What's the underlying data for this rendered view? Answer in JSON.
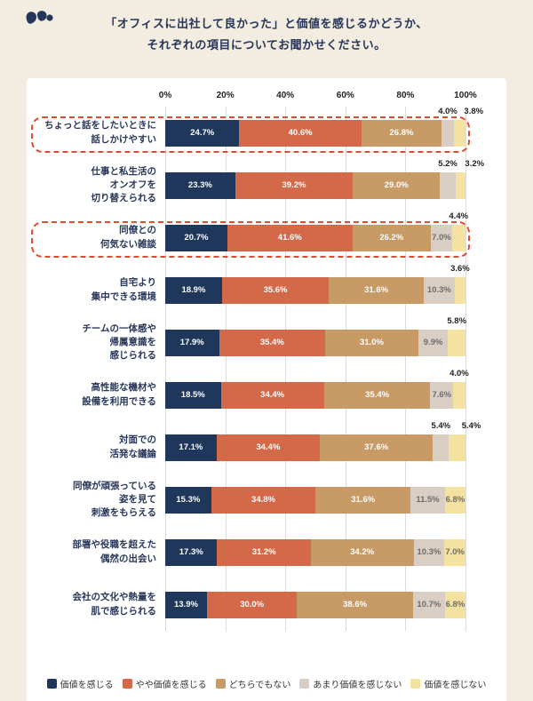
{
  "header": {
    "title_line1": "「オフィスに出社して良かった」と価値を感じるかどうか、",
    "title_line2": "それぞれの項目についてお聞かせください。"
  },
  "colors": {
    "page_bg": "#f2ece1",
    "card_bg": "#ffffff",
    "title_text": "#26365a",
    "grid": "#dcdcdc",
    "highlight_dash": "#e14b2e"
  },
  "chart_data": {
    "type": "bar",
    "variant": "horizontal-stacked",
    "grid": true,
    "legend_position": "bottom",
    "x_range": [
      0,
      100
    ],
    "x_ticks": [
      "0%",
      "20%",
      "40%",
      "60%",
      "80%",
      "100%"
    ],
    "value_suffix": "%",
    "series": [
      {
        "name": "価値を感じる",
        "color": "#20375c"
      },
      {
        "name": "やや価値を感じる",
        "color": "#d4694a"
      },
      {
        "name": "どちらでもない",
        "color": "#c79a66"
      },
      {
        "name": "あまり価値を感じない",
        "color": "#d8cec4"
      },
      {
        "name": "価値を感じない",
        "color": "#f4e2a0"
      }
    ],
    "rows": [
      {
        "label": "ちょっと話をしたいときに\n話しかけやすい",
        "values": [
          24.7,
          40.6,
          26.8,
          4.0,
          3.8
        ],
        "outside_labels": [
          3,
          4
        ],
        "highlighted": true
      },
      {
        "label": "仕事と私生活の\nオンオフを\n切り替えられる",
        "values": [
          23.3,
          39.2,
          29.0,
          5.2,
          3.2
        ],
        "outside_labels": [
          3,
          4
        ],
        "highlighted": false
      },
      {
        "label": "同僚との\n何気ない雑談",
        "values": [
          20.7,
          41.6,
          26.2,
          7.0,
          4.4
        ],
        "outside_labels": [
          4
        ],
        "highlighted": true
      },
      {
        "label": "自宅より\n集中できる環境",
        "values": [
          18.9,
          35.6,
          31.6,
          10.3,
          3.6
        ],
        "outside_labels": [
          4
        ],
        "highlighted": false
      },
      {
        "label": "チームの一体感や\n帰属意識を\n感じられる",
        "values": [
          17.9,
          35.4,
          31.0,
          9.9,
          5.8
        ],
        "outside_labels": [
          4
        ],
        "highlighted": false
      },
      {
        "label": "高性能な機材や\n設備を利用できる",
        "values": [
          18.5,
          34.4,
          35.4,
          7.6,
          4.0
        ],
        "outside_labels": [
          4
        ],
        "highlighted": false
      },
      {
        "label": "対面での\n活発な議論",
        "values": [
          17.1,
          34.4,
          37.6,
          5.4,
          5.4
        ],
        "outside_labels": [
          3,
          4
        ],
        "highlighted": false
      },
      {
        "label": "同僚が頑張っている\n姿を見て\n刺激をもらえる",
        "values": [
          15.3,
          34.8,
          31.6,
          11.5,
          6.8
        ],
        "outside_labels": [],
        "highlighted": false
      },
      {
        "label": "部署や役職を超えた\n偶然の出会い",
        "values": [
          17.3,
          31.2,
          34.2,
          10.3,
          7.0
        ],
        "outside_labels": [],
        "highlighted": false
      },
      {
        "label": "会社の文化や熱量を\n肌で感じられる",
        "values": [
          13.9,
          30.0,
          38.6,
          10.7,
          6.8
        ],
        "outside_labels": [],
        "highlighted": false
      }
    ]
  }
}
